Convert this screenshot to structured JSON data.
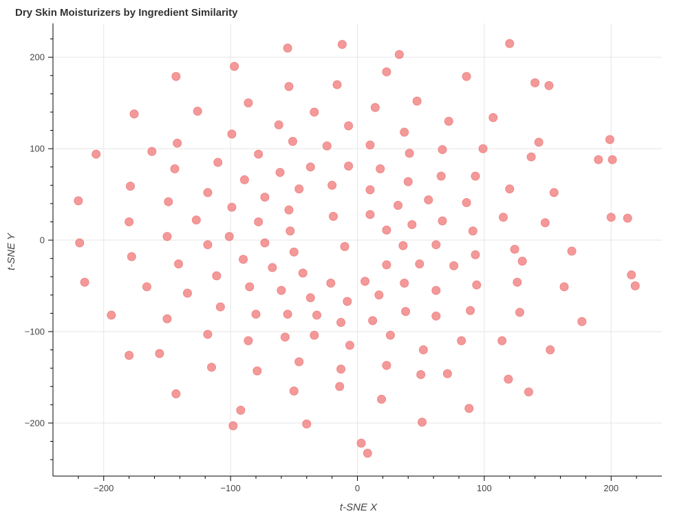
{
  "chart_data": {
    "type": "scatter",
    "title": "Dry Skin Moisturizers by Ingredient Similarity",
    "xlabel": "t-SNE X",
    "ylabel": "t-SNE Y",
    "xlim": [
      -240,
      240
    ],
    "ylim": [
      -258,
      237
    ],
    "xticks": [
      -200,
      -100,
      0,
      100,
      200
    ],
    "yticks": [
      -200,
      -100,
      0,
      100,
      200
    ],
    "xtick_labels": [
      "−200",
      "−100",
      "0",
      "100",
      "200"
    ],
    "ytick_labels": [
      "−200",
      "−100",
      "0",
      "100",
      "200"
    ],
    "grid": true,
    "color": "#f08080",
    "points": [
      [
        -220,
        43
      ],
      [
        -219,
        -3
      ],
      [
        -215,
        -46
      ],
      [
        -206,
        94
      ],
      [
        -194,
        -82
      ],
      [
        -180,
        -126
      ],
      [
        -180,
        20
      ],
      [
        -179,
        59
      ],
      [
        -178,
        -18
      ],
      [
        -176,
        138
      ],
      [
        -166,
        -51
      ],
      [
        -162,
        97
      ],
      [
        -156,
        -124
      ],
      [
        -149,
        42
      ],
      [
        -150,
        4
      ],
      [
        -150,
        -86
      ],
      [
        -143,
        179
      ],
      [
        -142,
        106
      ],
      [
        -141,
        -26
      ],
      [
        -143,
        -168
      ],
      [
        -144,
        78
      ],
      [
        -134,
        -58
      ],
      [
        -126,
        141
      ],
      [
        -127,
        22
      ],
      [
        -118,
        52
      ],
      [
        -118,
        -5
      ],
      [
        -118,
        -103
      ],
      [
        -115,
        -139
      ],
      [
        -111,
        -39
      ],
      [
        -110,
        85
      ],
      [
        -108,
        -73
      ],
      [
        -101,
        4
      ],
      [
        -99,
        116
      ],
      [
        -99,
        36
      ],
      [
        -97,
        190
      ],
      [
        -98,
        -203
      ],
      [
        -92,
        -186
      ],
      [
        -90,
        -21
      ],
      [
        -89,
        66
      ],
      [
        -86,
        150
      ],
      [
        -85,
        -51
      ],
      [
        -86,
        -110
      ],
      [
        -80,
        -81
      ],
      [
        -79,
        -143
      ],
      [
        -78,
        20
      ],
      [
        -78,
        94
      ],
      [
        -73,
        -3
      ],
      [
        -73,
        47
      ],
      [
        -67,
        -30
      ],
      [
        -62,
        126
      ],
      [
        -61,
        74
      ],
      [
        -60,
        -55
      ],
      [
        -57,
        -106
      ],
      [
        -55,
        -81
      ],
      [
        -55,
        210
      ],
      [
        -54,
        168
      ],
      [
        -54,
        33
      ],
      [
        -53,
        10
      ],
      [
        -51,
        108
      ],
      [
        -50,
        -13
      ],
      [
        -50,
        -165
      ],
      [
        -46,
        -133
      ],
      [
        -46,
        56
      ],
      [
        -43,
        -36
      ],
      [
        -40,
        -201
      ],
      [
        -37,
        -63
      ],
      [
        -37,
        80
      ],
      [
        -34,
        140
      ],
      [
        -34,
        -104
      ],
      [
        -32,
        -82
      ],
      [
        -24,
        103
      ],
      [
        -21,
        -47
      ],
      [
        -20,
        60
      ],
      [
        -16,
        170
      ],
      [
        -12,
        214
      ],
      [
        -13,
        -90
      ],
      [
        -13,
        -141
      ],
      [
        -14,
        -160
      ],
      [
        -7,
        125
      ],
      [
        -7,
        81
      ],
      [
        -8,
        -67
      ],
      [
        -6,
        -115
      ],
      [
        6,
        -45
      ],
      [
        3,
        -222
      ],
      [
        8,
        -233
      ],
      [
        10,
        104
      ],
      [
        10,
        28
      ],
      [
        12,
        -88
      ],
      [
        14,
        145
      ],
      [
        17,
        -60
      ],
      [
        18,
        78
      ],
      [
        19,
        -174
      ],
      [
        23,
        11
      ],
      [
        23,
        -27
      ],
      [
        23,
        -137
      ],
      [
        23,
        184
      ],
      [
        26,
        -104
      ],
      [
        33,
        203
      ],
      [
        32,
        38
      ],
      [
        36,
        -6
      ],
      [
        37,
        118
      ],
      [
        37,
        -47
      ],
      [
        38,
        -78
      ],
      [
        40,
        64
      ],
      [
        41,
        95
      ],
      [
        43,
        17
      ],
      [
        47,
        152
      ],
      [
        49,
        -26
      ],
      [
        50,
        -147
      ],
      [
        51,
        -199
      ],
      [
        52,
        -120
      ],
      [
        56,
        44
      ],
      [
        62,
        -5
      ],
      [
        62,
        -83
      ],
      [
        62,
        -55
      ],
      [
        66,
        70
      ],
      [
        67,
        21
      ],
      [
        67,
        99
      ],
      [
        71,
        -146
      ],
      [
        72,
        130
      ],
      [
        76,
        -28
      ],
      [
        82,
        -110
      ],
      [
        86,
        41
      ],
      [
        88,
        -184
      ],
      [
        89,
        -77
      ],
      [
        91,
        10
      ],
      [
        93,
        70
      ],
      [
        93,
        -16
      ],
      [
        94,
        -49
      ],
      [
        99,
        100
      ],
      [
        107,
        134
      ],
      [
        115,
        25
      ],
      [
        114,
        -110
      ],
      [
        119,
        -152
      ],
      [
        120,
        56
      ],
      [
        124,
        -10
      ],
      [
        126,
        -46
      ],
      [
        128,
        -79
      ],
      [
        130,
        -23
      ],
      [
        135,
        -166
      ],
      [
        137,
        91
      ],
      [
        140,
        172
      ],
      [
        143,
        107
      ],
      [
        148,
        19
      ],
      [
        151,
        169
      ],
      [
        152,
        -120
      ],
      [
        155,
        52
      ],
      [
        163,
        -51
      ],
      [
        169,
        -12
      ],
      [
        177,
        -89
      ],
      [
        190,
        88
      ],
      [
        199,
        110
      ],
      [
        200,
        25
      ],
      [
        201,
        88
      ],
      [
        213,
        24
      ],
      [
        216,
        -38
      ],
      [
        219,
        -50
      ],
      [
        -19,
        26
      ],
      [
        10,
        55
      ],
      [
        -10,
        -7
      ],
      [
        86,
        179
      ],
      [
        120,
        215
      ]
    ]
  }
}
